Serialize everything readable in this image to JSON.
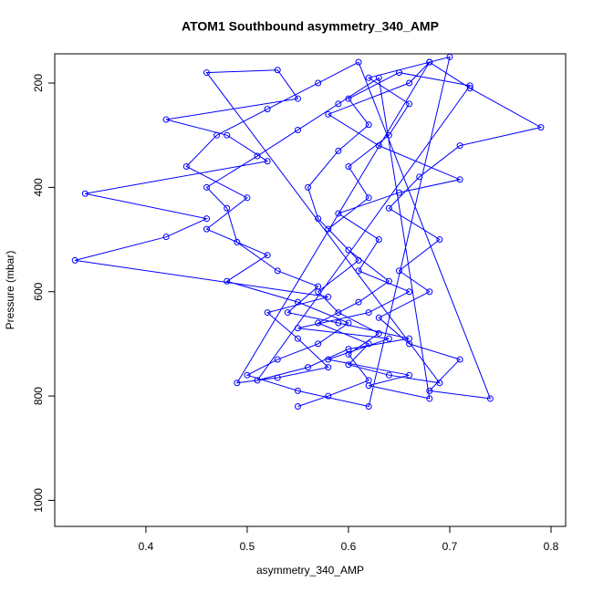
{
  "chart_data": {
    "type": "line",
    "title": "ATOM1 Southbound asymmetry_340_AMP",
    "x_label": "asymmetry_340_AMP",
    "y_label": "Pressure (mbar)",
    "xlim": [
      0.31,
      0.8144
    ],
    "ylim": [
      1050,
      144
    ],
    "xticks": [
      0.4,
      0.5,
      0.6,
      0.7,
      0.8
    ],
    "yticks": [
      200,
      400,
      600,
      800,
      1000
    ],
    "markers": true,
    "series": [
      {
        "color": "#0000ff",
        "x": [
          0.55,
          0.58,
          0.62,
          0.6,
          0.63,
          0.59,
          0.57,
          0.61,
          0.58,
          0.62,
          0.6,
          0.64,
          0.66,
          0.62,
          0.7,
          0.62,
          0.55,
          0.5,
          0.53,
          0.57,
          0.6,
          0.55,
          0.48,
          0.52,
          0.46,
          0.5,
          0.44,
          0.47,
          0.52,
          0.57,
          0.61,
          0.74,
          0.68,
          0.71,
          0.66,
          0.63,
          0.68,
          0.65,
          0.69,
          0.64,
          0.67,
          0.71,
          0.79,
          0.72,
          0.68,
          0.49,
          0.53,
          0.58,
          0.55,
          0.52,
          0.58,
          0.33,
          0.42,
          0.46,
          0.34,
          0.52,
          0.48,
          0.42,
          0.55,
          0.53,
          0.46,
          0.69,
          0.64,
          0.6,
          0.62,
          0.57,
          0.61,
          0.64,
          0.6,
          0.57,
          0.56,
          0.59,
          0.62,
          0.6,
          0.65,
          0.72,
          0.51,
          0.56,
          0.6,
          0.66,
          0.59,
          0.54,
          0.57,
          0.53,
          0.49,
          0.48,
          0.46,
          0.51,
          0.55,
          0.59,
          0.63,
          0.68,
          0.62,
          0.66,
          0.58,
          0.64,
          0.55,
          0.62,
          0.66,
          0.61,
          0.63,
          0.59,
          0.65,
          0.71,
          0.63,
          0.58,
          0.66,
          0.68
        ],
        "values": [
          820,
          800,
          770,
          720,
          680,
          640,
          600,
          540,
          480,
          420,
          360,
          300,
          240,
          190,
          150,
          820,
          790,
          760,
          730,
          700,
          660,
          620,
          580,
          530,
          480,
          420,
          360,
          300,
          250,
          200,
          160,
          805,
          790,
          730,
          700,
          650,
          600,
          560,
          500,
          440,
          380,
          320,
          285,
          210,
          160,
          775,
          765,
          745,
          690,
          640,
          610,
          540,
          495,
          460,
          412,
          350,
          300,
          270,
          230,
          175,
          180,
          775,
          760,
          740,
          700,
          660,
          620,
          580,
          520,
          460,
          400,
          330,
          280,
          230,
          180,
          205,
          770,
          745,
          710,
          690,
          660,
          640,
          590,
          560,
          505,
          440,
          400,
          340,
          290,
          240,
          190,
          805,
          780,
          760,
          730,
          690,
          670,
          640,
          600,
          560,
          500,
          450,
          410,
          385,
          320,
          260,
          200,
          160
        ]
      }
    ]
  }
}
